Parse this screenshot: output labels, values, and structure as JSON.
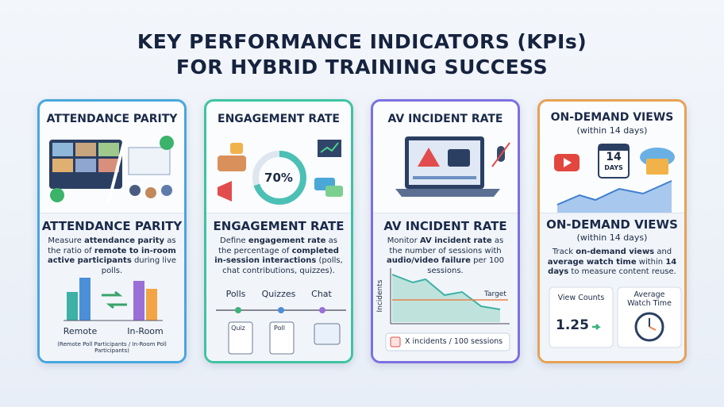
{
  "title": [
    "KEY PERFORMANCE INDICATORS (KPIs)",
    "FOR HYBRID TRAINING SUCCESS"
  ],
  "cards": [
    {
      "header": "ATTENDANCE PARITY",
      "heading": "ATTENDANCE PARITY",
      "description": [
        {
          "text": "Measure ",
          "bold": false
        },
        {
          "text": "attendance parity",
          "bold": true
        },
        {
          "text": " as the ratio of ",
          "bold": false
        },
        {
          "text": "remote to in-room active participants",
          "bold": true
        },
        {
          "text": " during live polls.",
          "bold": false
        }
      ],
      "chart_labels": [
        "Remote",
        "In-Room"
      ],
      "caption": "(Remote Poll Participants / In-Room Poll Participants)"
    },
    {
      "header": "ENGAGEMENT RATE",
      "gauge_label": "70%",
      "heading": "ENGAGEMENT RATE",
      "description": [
        {
          "text": "Define ",
          "bold": false
        },
        {
          "text": "engagement rate",
          "bold": true
        },
        {
          "text": " as the percentage of ",
          "bold": false
        },
        {
          "text": "completed in-session interactions",
          "bold": true
        },
        {
          "text": " (polls, chat contributions, quizzes).",
          "bold": false
        }
      ],
      "timeline": [
        "Polls",
        "Quizzes",
        "Chat"
      ],
      "icons": [
        "Quiz",
        "Poll"
      ]
    },
    {
      "header": "AV INCIDENT RATE",
      "heading": "AV INCIDENT RATE",
      "description": [
        {
          "text": "Monitor ",
          "bold": false
        },
        {
          "text": "AV incident rate",
          "bold": true
        },
        {
          "text": " as the number of sessions with ",
          "bold": false
        },
        {
          "text": "audio/video failure",
          "bold": true
        },
        {
          "text": " per 100 sessions.",
          "bold": false
        }
      ],
      "axis_label": "Incidents",
      "target_label": "Target",
      "legend": "X incidents / 100 sessions"
    },
    {
      "header": "ON-DEMAND VIEWS",
      "header_sub": "(within 14 days)",
      "calendar": [
        "14",
        "DAYS"
      ],
      "heading": "ON-DEMAND VIEWS",
      "heading_sub": "(within 14 days)",
      "description": [
        {
          "text": "Track ",
          "bold": false
        },
        {
          "text": "on-demand views",
          "bold": true
        },
        {
          "text": " and ",
          "bold": false
        },
        {
          "text": "average watch time",
          "bold": true
        },
        {
          "text": " within ",
          "bold": false
        },
        {
          "text": "14 days",
          "bold": true
        },
        {
          "text": " to measure content reuse.",
          "bold": false
        }
      ],
      "stats": [
        {
          "label": "View Counts",
          "value": "1.25"
        },
        {
          "label": "Average Watch Time"
        }
      ]
    }
  ]
}
